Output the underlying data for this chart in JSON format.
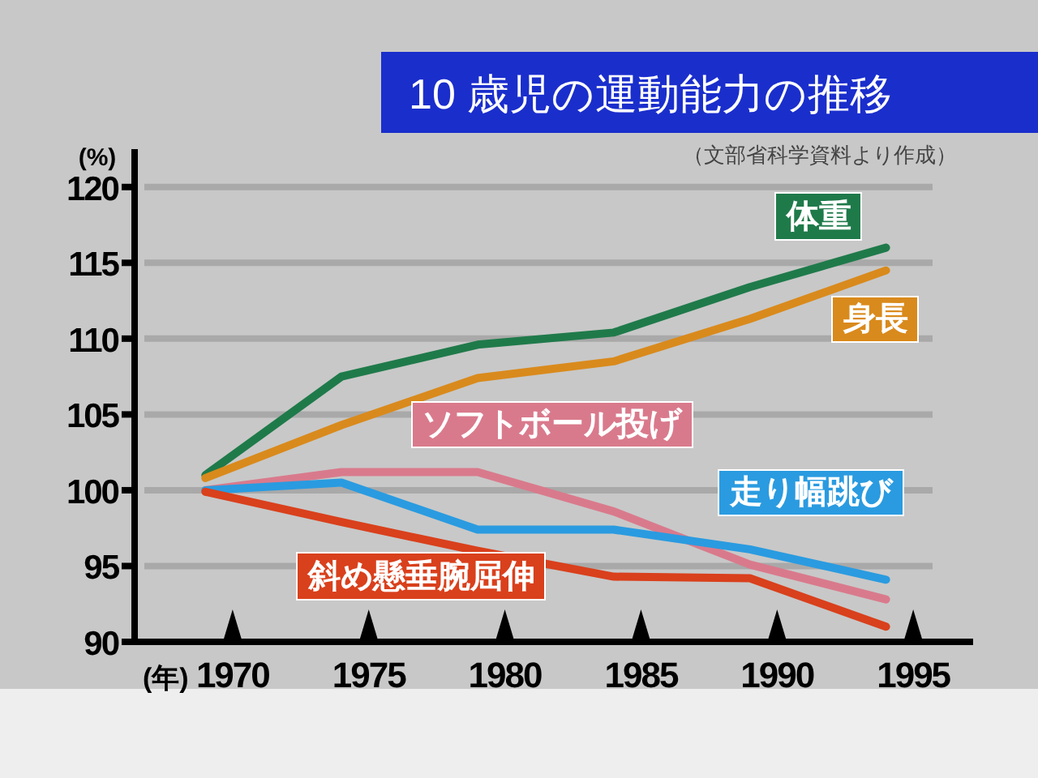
{
  "chart_data": {
    "type": "line",
    "title": "10 歳児の運動能力の推移",
    "annotations": [
      "（文部省科学資料より作成）"
    ],
    "xlabel": "(年)",
    "ylabel": "(%)",
    "x": [
      1969,
      1974,
      1979,
      1984,
      1989,
      1994
    ],
    "xlim": [
      1966.4,
      1997.2
    ],
    "xticks": [
      1970,
      1975,
      1980,
      1985,
      1990,
      1995
    ],
    "ylim": [
      90,
      122.5
    ],
    "yticks": [
      90,
      95,
      100,
      105,
      110,
      115,
      120
    ],
    "grid": "y",
    "legend": false,
    "marker": "none",
    "line_style": "solid",
    "series": [
      {
        "name": "体重",
        "color": "#1f7a4a",
        "values": [
          101,
          107.5,
          109.6,
          110.4,
          113.4,
          116
        ]
      },
      {
        "name": "身長",
        "color": "#d98a1c",
        "values": [
          100.8,
          104.3,
          107.4,
          108.5,
          111.3,
          114.5
        ]
      },
      {
        "name": "ソフトボール投げ",
        "color": "#d97a8c",
        "values": [
          100,
          101.2,
          101.2,
          98.6,
          95.1,
          92.8
        ]
      },
      {
        "name": "走り幅跳び",
        "color": "#2a9be0",
        "values": [
          100,
          100.5,
          97.4,
          97.4,
          96.1,
          94.1
        ]
      },
      {
        "name": "斜め懸垂腕屈伸",
        "color": "#d9401c",
        "values": [
          99.9,
          97.9,
          96,
          94.3,
          94.2,
          91
        ]
      }
    ]
  }
}
